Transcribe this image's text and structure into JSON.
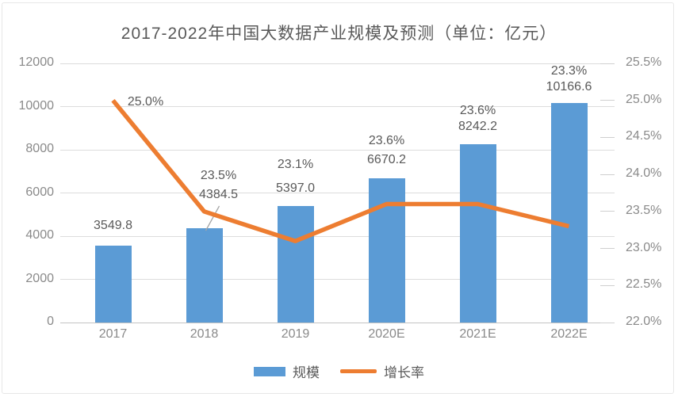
{
  "chart_data": {
    "type": "combo-bar-line",
    "title": "2017-2022年中国大数据产业规模及预测（单位：亿元）",
    "categories": [
      "2017",
      "2018",
      "2019",
      "2020E",
      "2021E",
      "2022E"
    ],
    "series": [
      {
        "name": "规模",
        "type": "bar",
        "axis": "left",
        "values": [
          3549.8,
          4384.5,
          5397.0,
          6670.2,
          8242.2,
          10166.6
        ],
        "labels": [
          "3549.8",
          "4384.5",
          "5397.0",
          "6670.2",
          "8242.2",
          "10166.6"
        ],
        "color": "#5B9BD5"
      },
      {
        "name": "增长率",
        "type": "line",
        "axis": "right",
        "values": [
          25.0,
          23.5,
          23.1,
          23.6,
          23.6,
          23.3
        ],
        "labels": [
          "25.0%",
          "23.5%",
          "23.1%",
          "23.6%",
          "23.6%",
          "23.3%"
        ],
        "color": "#ED7D31"
      }
    ],
    "left_axis": {
      "min": 0,
      "max": 12000,
      "step": 2000,
      "ticks": [
        "0",
        "2000",
        "4000",
        "6000",
        "8000",
        "10000",
        "12000"
      ]
    },
    "right_axis": {
      "min": 22.0,
      "max": 25.5,
      "step": 0.5,
      "ticks": [
        "22.0%",
        "22.5%",
        "23.0%",
        "23.5%",
        "24.0%",
        "24.5%",
        "25.0%",
        "25.5%"
      ]
    },
    "grid": true,
    "legend_position": "bottom",
    "legend": [
      {
        "id": "scale",
        "label": "规模",
        "swatch": "bar",
        "color": "#5B9BD5"
      },
      {
        "id": "growth-rate",
        "label": "增长率",
        "swatch": "line",
        "color": "#ED7D31"
      }
    ],
    "colors": {
      "bar": "#5B9BD5",
      "line": "#ED7D31",
      "text": "#595959",
      "axis_text": "#8a8a8a",
      "gridline": "#dcdcdc",
      "leader_line": "#a6a6a6"
    }
  }
}
